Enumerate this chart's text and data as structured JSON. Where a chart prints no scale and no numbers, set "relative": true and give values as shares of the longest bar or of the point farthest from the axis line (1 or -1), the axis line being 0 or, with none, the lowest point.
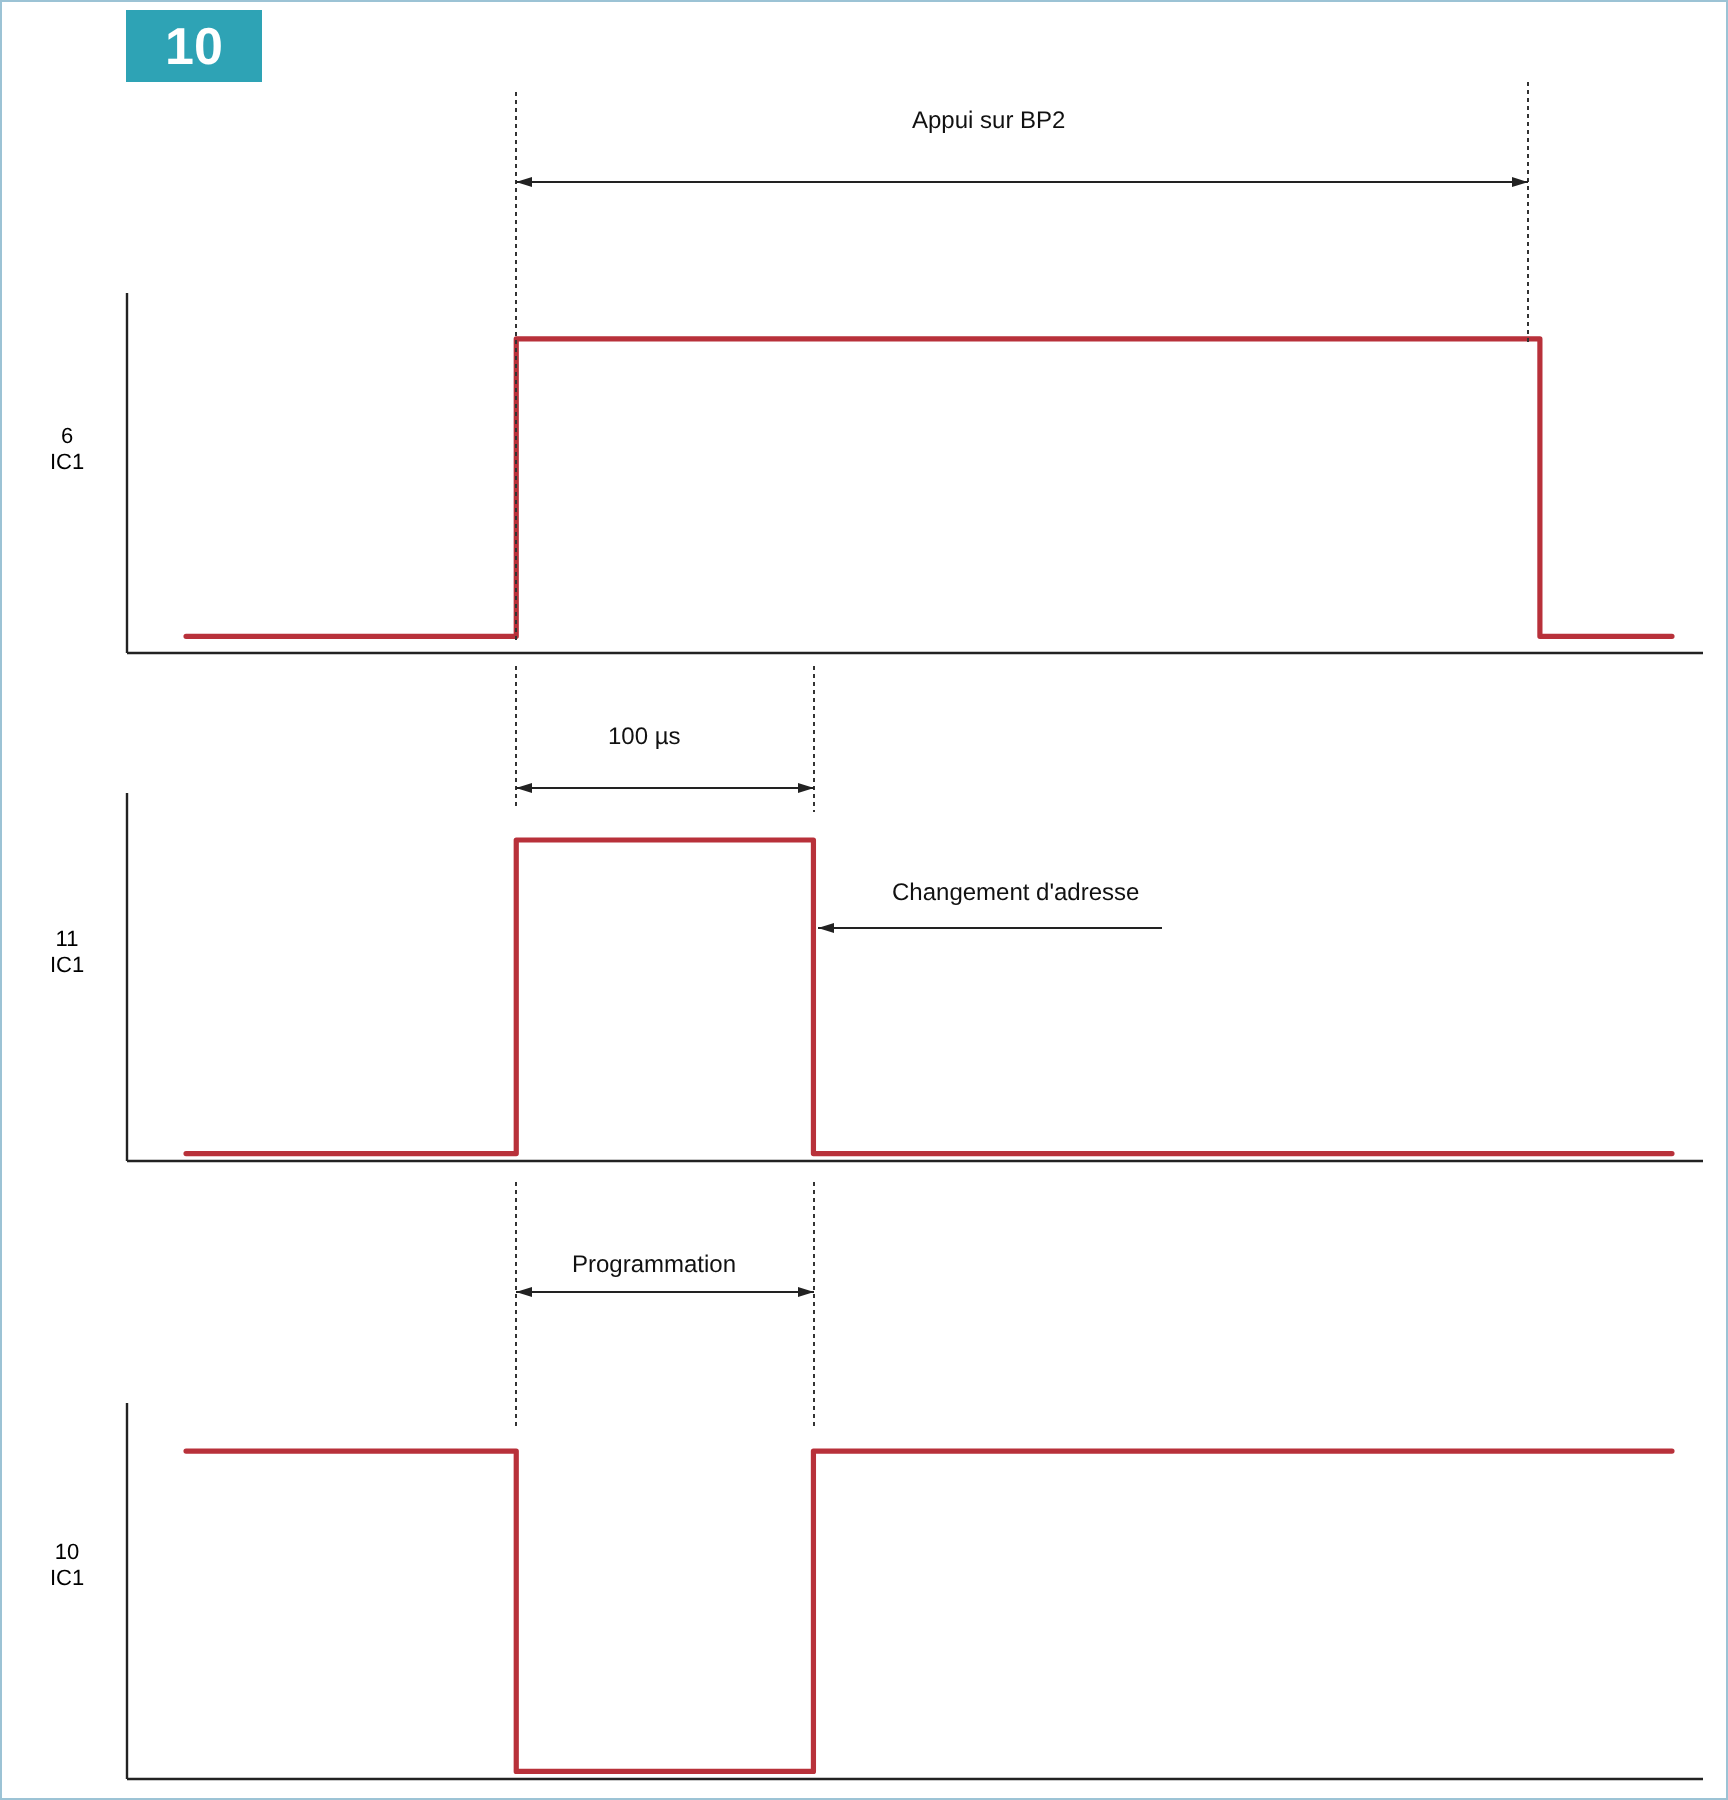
{
  "chart_data": [
    {
      "type": "step",
      "title": "10",
      "ylabel": "6 IC1",
      "relative": true,
      "grid": false,
      "legend": false,
      "annotations": [
        "Appui sur BP2"
      ],
      "categories": [
        null,
        null,
        null,
        null,
        null,
        null,
        null,
        null,
        null,
        null,
        null,
        null,
        null,
        null,
        null,
        null,
        null,
        null,
        null,
        null,
        null,
        null,
        null,
        null,
        null,
        null,
        null,
        null,
        null,
        null,
        null,
        null,
        null,
        null,
        null,
        null,
        null,
        null,
        null,
        null,
        null,
        null,
        null,
        null,
        null,
        null
      ],
      "series": [
        {
          "color": "#b8313a",
          "values": [
            0.05,
            0.05,
            0.05,
            0.05,
            0.05,
            0.05,
            0.05,
            0.05,
            0.05,
            0.05,
            1,
            1,
            1,
            1,
            1,
            1,
            1,
            1,
            1,
            1,
            1,
            1,
            1,
            1,
            1,
            1,
            1,
            1,
            1,
            1,
            1,
            1,
            1,
            1,
            1,
            1,
            1,
            1,
            1,
            1,
            1,
            0.05,
            0.05,
            0.05,
            0.05,
            0.05
          ]
        }
      ]
    },
    {
      "type": "step",
      "ylabel": "11 IC1",
      "relative": true,
      "grid": false,
      "legend": false,
      "annotations": [
        "100 µs",
        "Changement d'adresse"
      ],
      "categories": [
        null,
        null,
        null,
        null,
        null,
        null,
        null,
        null,
        null,
        null,
        null,
        null,
        null,
        null,
        null,
        null,
        null,
        null,
        null,
        null,
        null,
        null,
        null,
        null,
        null,
        null,
        null,
        null,
        null,
        null,
        null,
        null,
        null,
        null,
        null,
        null,
        null,
        null,
        null,
        null,
        null,
        null,
        null,
        null,
        null,
        null
      ],
      "series": [
        {
          "color": "#b8313a",
          "values": [
            0.02,
            0.02,
            0.02,
            0.02,
            0.02,
            0.02,
            0.02,
            0.02,
            0.02,
            0.02,
            1,
            1,
            1,
            1,
            1,
            1,
            1,
            1,
            1,
            0.02,
            0.02,
            0.02,
            0.02,
            0.02,
            0.02,
            0.02,
            0.02,
            0.02,
            0.02,
            0.02,
            0.02,
            0.02,
            0.02,
            0.02,
            0.02,
            0.02,
            0.02,
            0.02,
            0.02,
            0.02,
            0.02,
            0.02,
            0.02,
            0.02,
            0.02,
            0.02
          ]
        }
      ]
    },
    {
      "type": "step",
      "ylabel": "10 IC1",
      "relative": true,
      "grid": false,
      "legend": false,
      "annotations": [
        "Programmation"
      ],
      "categories": [
        null,
        null,
        null,
        null,
        null,
        null,
        null,
        null,
        null,
        null,
        null,
        null,
        null,
        null,
        null,
        null,
        null,
        null,
        null,
        null,
        null,
        null,
        null,
        null,
        null,
        null,
        null,
        null,
        null,
        null,
        null,
        null,
        null,
        null,
        null,
        null,
        null,
        null,
        null,
        null,
        null,
        null,
        null,
        null,
        null,
        null
      ],
      "series": [
        {
          "color": "#b8313a",
          "values": [
            1,
            1,
            1,
            1,
            1,
            1,
            1,
            1,
            1,
            1,
            0.02,
            0.02,
            0.02,
            0.02,
            0.02,
            0.02,
            0.02,
            0.02,
            0.02,
            1,
            1,
            1,
            1,
            1,
            1,
            1,
            1,
            1,
            1,
            1,
            1,
            1,
            1,
            1,
            1,
            1,
            1,
            1,
            1,
            1,
            1,
            1,
            1,
            1,
            1,
            1
          ]
        }
      ]
    }
  ]
}
